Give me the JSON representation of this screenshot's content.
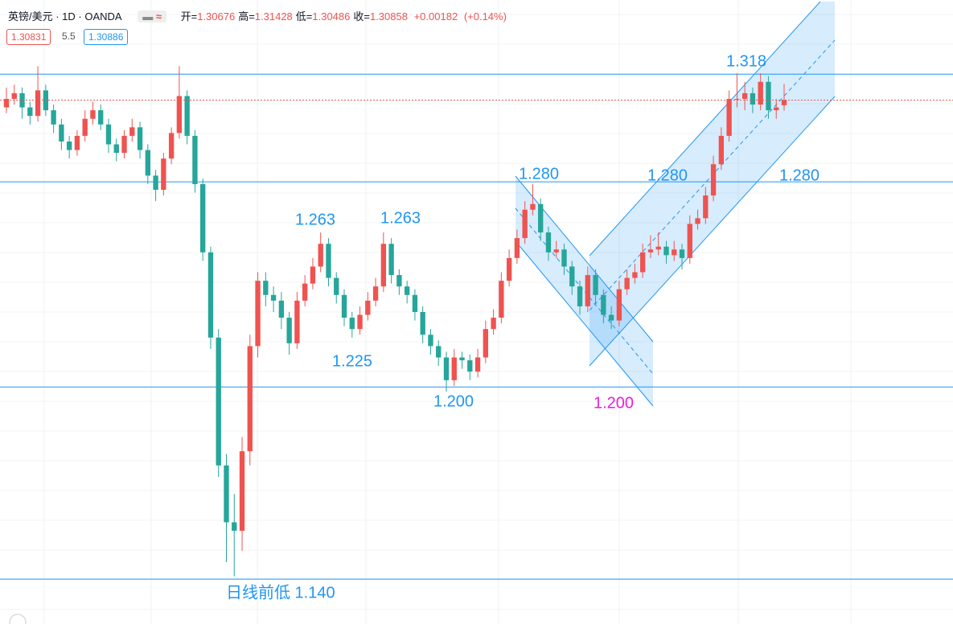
{
  "header": {
    "symbol": "英镑/美元 · 1D · OANDA",
    "ohlc": [
      {
        "label": "开=",
        "value": "1.30676"
      },
      {
        "label": "高=",
        "value": "1.31428"
      },
      {
        "label": "低=",
        "value": "1.30486"
      },
      {
        "label": "收=",
        "value": "1.30858"
      }
    ],
    "change": "+0.00182",
    "change_pct": "(+0.14%)",
    "sell": "1.30831",
    "spread": "5.5",
    "buy": "1.30886"
  },
  "chart_data": {
    "type": "candlestick",
    "up_color": "#ef5350",
    "down_color": "#26a69a",
    "ylim": [
      1.1242,
      1.3438
    ],
    "hlines": [
      1.3177,
      1.2798,
      1.2076,
      1.14
    ],
    "hline_color": "#2196f3",
    "series": [
      {
        "values": [
          [
            1.306,
            1.313,
            1.304,
            1.309
          ],
          [
            1.309,
            1.314,
            1.307,
            1.311
          ],
          [
            1.311,
            1.313,
            1.302,
            1.306
          ],
          [
            1.306,
            1.308,
            1.3,
            1.303
          ],
          [
            1.303,
            1.3205,
            1.301,
            1.312
          ],
          [
            1.312,
            1.314,
            1.303,
            1.305
          ],
          [
            1.305,
            1.307,
            1.297,
            1.3
          ],
          [
            1.3,
            1.302,
            1.291,
            1.294
          ],
          [
            1.294,
            1.296,
            1.288,
            1.291
          ],
          [
            1.291,
            1.298,
            1.289,
            1.296
          ],
          [
            1.296,
            1.305,
            1.294,
            1.302
          ],
          [
            1.302,
            1.308,
            1.3,
            1.305
          ],
          [
            1.305,
            1.307,
            1.298,
            1.3
          ],
          [
            1.3,
            1.302,
            1.29,
            1.293
          ],
          [
            1.293,
            1.295,
            1.287,
            1.29
          ],
          [
            1.29,
            1.298,
            1.288,
            1.296
          ],
          [
            1.296,
            1.302,
            1.294,
            1.299
          ],
          [
            1.299,
            1.301,
            1.288,
            1.291
          ],
          [
            1.291,
            1.293,
            1.279,
            1.282
          ],
          [
            1.282,
            1.284,
            1.273,
            1.277
          ],
          [
            1.277,
            1.29,
            1.275,
            1.288
          ],
          [
            1.288,
            1.299,
            1.286,
            1.297
          ],
          [
            1.297,
            1.3205,
            1.295,
            1.31
          ],
          [
            1.31,
            1.312,
            1.293,
            1.296
          ],
          [
            1.296,
            1.298,
            1.276,
            1.279
          ],
          [
            1.279,
            1.281,
            1.252,
            1.255
          ],
          [
            1.255,
            1.257,
            1.221,
            1.225
          ],
          [
            1.225,
            1.228,
            1.176,
            1.18
          ],
          [
            1.18,
            1.184,
            1.146,
            1.16
          ],
          [
            1.16,
            1.17,
            1.141,
            1.157
          ],
          [
            1.157,
            1.19,
            1.15,
            1.185
          ],
          [
            1.185,
            1.226,
            1.18,
            1.222
          ],
          [
            1.222,
            1.248,
            1.218,
            1.245
          ],
          [
            1.245,
            1.248,
            1.236,
            1.24
          ],
          [
            1.24,
            1.243,
            1.234,
            1.238
          ],
          [
            1.238,
            1.241,
            1.228,
            1.232
          ],
          [
            1.232,
            1.234,
            1.219,
            1.223
          ],
          [
            1.223,
            1.241,
            1.221,
            1.238
          ],
          [
            1.238,
            1.247,
            1.236,
            1.244
          ],
          [
            1.244,
            1.253,
            1.242,
            1.25
          ],
          [
            1.25,
            1.262,
            1.248,
            1.258
          ],
          [
            1.258,
            1.26,
            1.243,
            1.246
          ],
          [
            1.246,
            1.248,
            1.237,
            1.24
          ],
          [
            1.24,
            1.242,
            1.229,
            1.232
          ],
          [
            1.232,
            1.234,
            1.225,
            1.228
          ],
          [
            1.228,
            1.236,
            1.226,
            1.233
          ],
          [
            1.233,
            1.241,
            1.231,
            1.238
          ],
          [
            1.238,
            1.246,
            1.236,
            1.243
          ],
          [
            1.243,
            1.262,
            1.241,
            1.258
          ],
          [
            1.258,
            1.26,
            1.244,
            1.247
          ],
          [
            1.247,
            1.249,
            1.24,
            1.243
          ],
          [
            1.243,
            1.245,
            1.237,
            1.24
          ],
          [
            1.24,
            1.242,
            1.231,
            1.234
          ],
          [
            1.234,
            1.236,
            1.223,
            1.226
          ],
          [
            1.226,
            1.228,
            1.219,
            1.222
          ],
          [
            1.222,
            1.224,
            1.215,
            1.218
          ],
          [
            1.218,
            1.22,
            1.206,
            1.21
          ],
          [
            1.21,
            1.221,
            1.208,
            1.218
          ],
          [
            1.218,
            1.22,
            1.214,
            1.217
          ],
          [
            1.217,
            1.219,
            1.21,
            1.213
          ],
          [
            1.213,
            1.221,
            1.211,
            1.218
          ],
          [
            1.218,
            1.231,
            1.216,
            1.228
          ],
          [
            1.228,
            1.235,
            1.226,
            1.232
          ],
          [
            1.232,
            1.248,
            1.23,
            1.245
          ],
          [
            1.245,
            1.256,
            1.243,
            1.253
          ],
          [
            1.253,
            1.263,
            1.251,
            1.26
          ],
          [
            1.26,
            1.273,
            1.258,
            1.27
          ],
          [
            1.27,
            1.279,
            1.268,
            1.272
          ],
          [
            1.272,
            1.274,
            1.259,
            1.262
          ],
          [
            1.262,
            1.264,
            1.252,
            1.255
          ],
          [
            1.255,
            1.259,
            1.253,
            1.256
          ],
          [
            1.256,
            1.258,
            1.247,
            1.25
          ],
          [
            1.25,
            1.252,
            1.24,
            1.243
          ],
          [
            1.243,
            1.245,
            1.233,
            1.236
          ],
          [
            1.236,
            1.25,
            1.234,
            1.247
          ],
          [
            1.247,
            1.249,
            1.237,
            1.24
          ],
          [
            1.24,
            1.242,
            1.23,
            1.233
          ],
          [
            1.233,
            1.236,
            1.228,
            1.231
          ],
          [
            1.231,
            1.245,
            1.229,
            1.242
          ],
          [
            1.242,
            1.249,
            1.24,
            1.246
          ],
          [
            1.246,
            1.251,
            1.244,
            1.248
          ],
          [
            1.248,
            1.258,
            1.246,
            1.255
          ],
          [
            1.255,
            1.261,
            1.253,
            1.256
          ],
          [
            1.256,
            1.262,
            1.254,
            1.257
          ],
          [
            1.257,
            1.259,
            1.251,
            1.254
          ],
          [
            1.254,
            1.259,
            1.252,
            1.256
          ],
          [
            1.256,
            1.258,
            1.249,
            1.253
          ],
          [
            1.253,
            1.268,
            1.251,
            1.265
          ],
          [
            1.265,
            1.27,
            1.263,
            1.267
          ],
          [
            1.267,
            1.278,
            1.265,
            1.275
          ],
          [
            1.275,
            1.289,
            1.273,
            1.286
          ],
          [
            1.286,
            1.299,
            1.284,
            1.296
          ],
          [
            1.296,
            1.312,
            1.294,
            1.309
          ],
          [
            1.309,
            1.318,
            1.306,
            1.309
          ],
          [
            1.309,
            1.315,
            1.305,
            1.311
          ],
          [
            1.311,
            1.313,
            1.304,
            1.307
          ],
          [
            1.307,
            1.318,
            1.305,
            1.315
          ],
          [
            1.315,
            1.317,
            1.302,
            1.305
          ],
          [
            1.305,
            1.309,
            1.302,
            1.306
          ],
          [
            1.30676,
            1.31428,
            1.30486,
            1.30858
          ]
        ]
      }
    ],
    "annotations": [
      {
        "text": "1.318",
        "color": "#2196f3"
      },
      {
        "text": "1.280",
        "color": "#2196f3"
      },
      {
        "text": "1.280",
        "color": "#2196f3"
      },
      {
        "text": "1.280",
        "color": "#2196f3"
      },
      {
        "text": "1.263",
        "color": "#2196f3"
      },
      {
        "text": "1.263",
        "color": "#2196f3"
      },
      {
        "text": "1.225",
        "color": "#2196f3"
      },
      {
        "text": "1.200",
        "color": "#2196f3"
      },
      {
        "text": "1.200",
        "color": "#e91ee0"
      },
      {
        "text": "日线前低 1.140",
        "color": "#2196f3"
      }
    ]
  }
}
